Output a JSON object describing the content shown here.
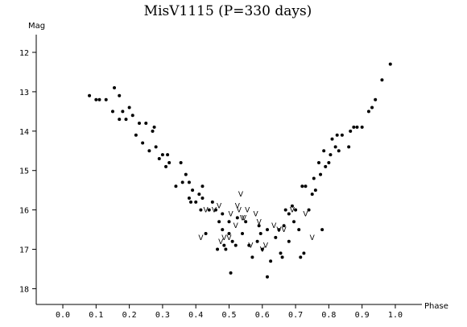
{
  "chart_data": {
    "type": "scatter",
    "title": "MisV1115 (P=330 days)",
    "xlabel": "Phase",
    "ylabel": "Mag",
    "xlim": [
      -0.08,
      1.08
    ],
    "ylim": [
      18.4,
      11.55
    ],
    "y_inverted": true,
    "x_ticks": [
      0.0,
      0.1,
      0.2,
      0.3,
      0.4,
      0.5,
      0.6,
      0.7,
      0.8,
      0.9,
      1.0
    ],
    "x_tick_labels": [
      "0.0",
      "0.1",
      "0.2",
      "0.3",
      "0.4",
      "0.5",
      "0.6",
      "0.7",
      "0.8",
      "0.9",
      "1.0"
    ],
    "y_ticks": [
      12,
      13,
      14,
      15,
      16,
      17,
      18
    ],
    "y_tick_labels": [
      "12",
      "13",
      "14",
      "15",
      "16",
      "17",
      "18"
    ],
    "grid": false,
    "series": [
      {
        "marker": "dot",
        "points": [
          [
            0.08,
            13.1
          ],
          [
            0.1,
            13.2
          ],
          [
            0.11,
            13.2
          ],
          [
            0.13,
            13.2
          ],
          [
            0.15,
            13.5
          ],
          [
            0.155,
            12.9
          ],
          [
            0.17,
            13.1
          ],
          [
            0.17,
            13.7
          ],
          [
            0.18,
            13.5
          ],
          [
            0.19,
            13.7
          ],
          [
            0.2,
            13.4
          ],
          [
            0.21,
            13.6
          ],
          [
            0.22,
            14.1
          ],
          [
            0.23,
            13.8
          ],
          [
            0.24,
            14.3
          ],
          [
            0.25,
            13.8
          ],
          [
            0.26,
            14.5
          ],
          [
            0.27,
            14.0
          ],
          [
            0.275,
            13.9
          ],
          [
            0.28,
            14.4
          ],
          [
            0.29,
            14.7
          ],
          [
            0.3,
            14.6
          ],
          [
            0.31,
            14.9
          ],
          [
            0.315,
            14.6
          ],
          [
            0.32,
            14.8
          ],
          [
            0.34,
            15.4
          ],
          [
            0.355,
            14.8
          ],
          [
            0.36,
            15.3
          ],
          [
            0.37,
            15.1
          ],
          [
            0.38,
            15.7
          ],
          [
            0.38,
            15.3
          ],
          [
            0.385,
            15.8
          ],
          [
            0.39,
            15.5
          ],
          [
            0.4,
            15.8
          ],
          [
            0.41,
            15.6
          ],
          [
            0.415,
            16.0
          ],
          [
            0.42,
            15.4
          ],
          [
            0.42,
            15.7
          ],
          [
            0.43,
            16.6
          ],
          [
            0.44,
            16.0
          ],
          [
            0.45,
            15.8
          ],
          [
            0.46,
            16.0
          ],
          [
            0.465,
            17.0
          ],
          [
            0.47,
            16.3
          ],
          [
            0.48,
            16.5
          ],
          [
            0.48,
            16.1
          ],
          [
            0.485,
            16.9
          ],
          [
            0.49,
            17.0
          ],
          [
            0.5,
            16.6
          ],
          [
            0.5,
            16.3
          ],
          [
            0.505,
            17.6
          ],
          [
            0.51,
            16.8
          ],
          [
            0.52,
            16.9
          ],
          [
            0.525,
            16.2
          ],
          [
            0.54,
            16.6
          ],
          [
            0.55,
            16.3
          ],
          [
            0.56,
            16.9
          ],
          [
            0.57,
            17.2
          ],
          [
            0.585,
            16.8
          ],
          [
            0.59,
            16.4
          ],
          [
            0.595,
            16.6
          ],
          [
            0.6,
            17.0
          ],
          [
            0.615,
            16.5
          ],
          [
            0.615,
            17.7
          ],
          [
            0.625,
            17.3
          ],
          [
            0.64,
            16.7
          ],
          [
            0.65,
            16.5
          ],
          [
            0.655,
            17.1
          ],
          [
            0.66,
            17.2
          ],
          [
            0.665,
            16.4
          ],
          [
            0.67,
            16.0
          ],
          [
            0.68,
            16.8
          ],
          [
            0.68,
            16.1
          ],
          [
            0.69,
            15.9
          ],
          [
            0.695,
            16.3
          ],
          [
            0.7,
            16.0
          ],
          [
            0.71,
            16.5
          ],
          [
            0.715,
            17.2
          ],
          [
            0.72,
            15.4
          ],
          [
            0.725,
            17.1
          ],
          [
            0.73,
            15.4
          ],
          [
            0.74,
            16.0
          ],
          [
            0.75,
            15.6
          ],
          [
            0.755,
            15.2
          ],
          [
            0.76,
            15.5
          ],
          [
            0.77,
            14.8
          ],
          [
            0.775,
            15.1
          ],
          [
            0.78,
            16.5
          ],
          [
            0.785,
            14.5
          ],
          [
            0.79,
            14.9
          ],
          [
            0.8,
            14.8
          ],
          [
            0.805,
            14.6
          ],
          [
            0.81,
            14.2
          ],
          [
            0.82,
            14.4
          ],
          [
            0.825,
            14.1
          ],
          [
            0.83,
            14.5
          ],
          [
            0.84,
            14.1
          ],
          [
            0.86,
            14.4
          ],
          [
            0.865,
            14.0
          ],
          [
            0.875,
            13.9
          ],
          [
            0.885,
            13.9
          ],
          [
            0.9,
            13.9
          ],
          [
            0.92,
            13.5
          ],
          [
            0.93,
            13.4
          ],
          [
            0.94,
            13.2
          ],
          [
            0.96,
            12.7
          ],
          [
            0.985,
            12.3
          ]
        ]
      },
      {
        "marker": "V",
        "points": [
          [
            0.415,
            16.7
          ],
          [
            0.43,
            16.0
          ],
          [
            0.455,
            16.0
          ],
          [
            0.47,
            15.9
          ],
          [
            0.475,
            16.8
          ],
          [
            0.485,
            16.7
          ],
          [
            0.5,
            16.7
          ],
          [
            0.505,
            16.1
          ],
          [
            0.52,
            16.4
          ],
          [
            0.525,
            15.9
          ],
          [
            0.53,
            16.0
          ],
          [
            0.535,
            15.6
          ],
          [
            0.54,
            16.2
          ],
          [
            0.545,
            16.2
          ],
          [
            0.555,
            16.0
          ],
          [
            0.565,
            16.9
          ],
          [
            0.58,
            16.1
          ],
          [
            0.59,
            16.3
          ],
          [
            0.6,
            17.0
          ],
          [
            0.61,
            16.9
          ],
          [
            0.635,
            16.4
          ],
          [
            0.65,
            16.5
          ],
          [
            0.665,
            16.5
          ],
          [
            0.69,
            16.0
          ],
          [
            0.73,
            16.1
          ],
          [
            0.75,
            16.7
          ]
        ]
      }
    ]
  }
}
